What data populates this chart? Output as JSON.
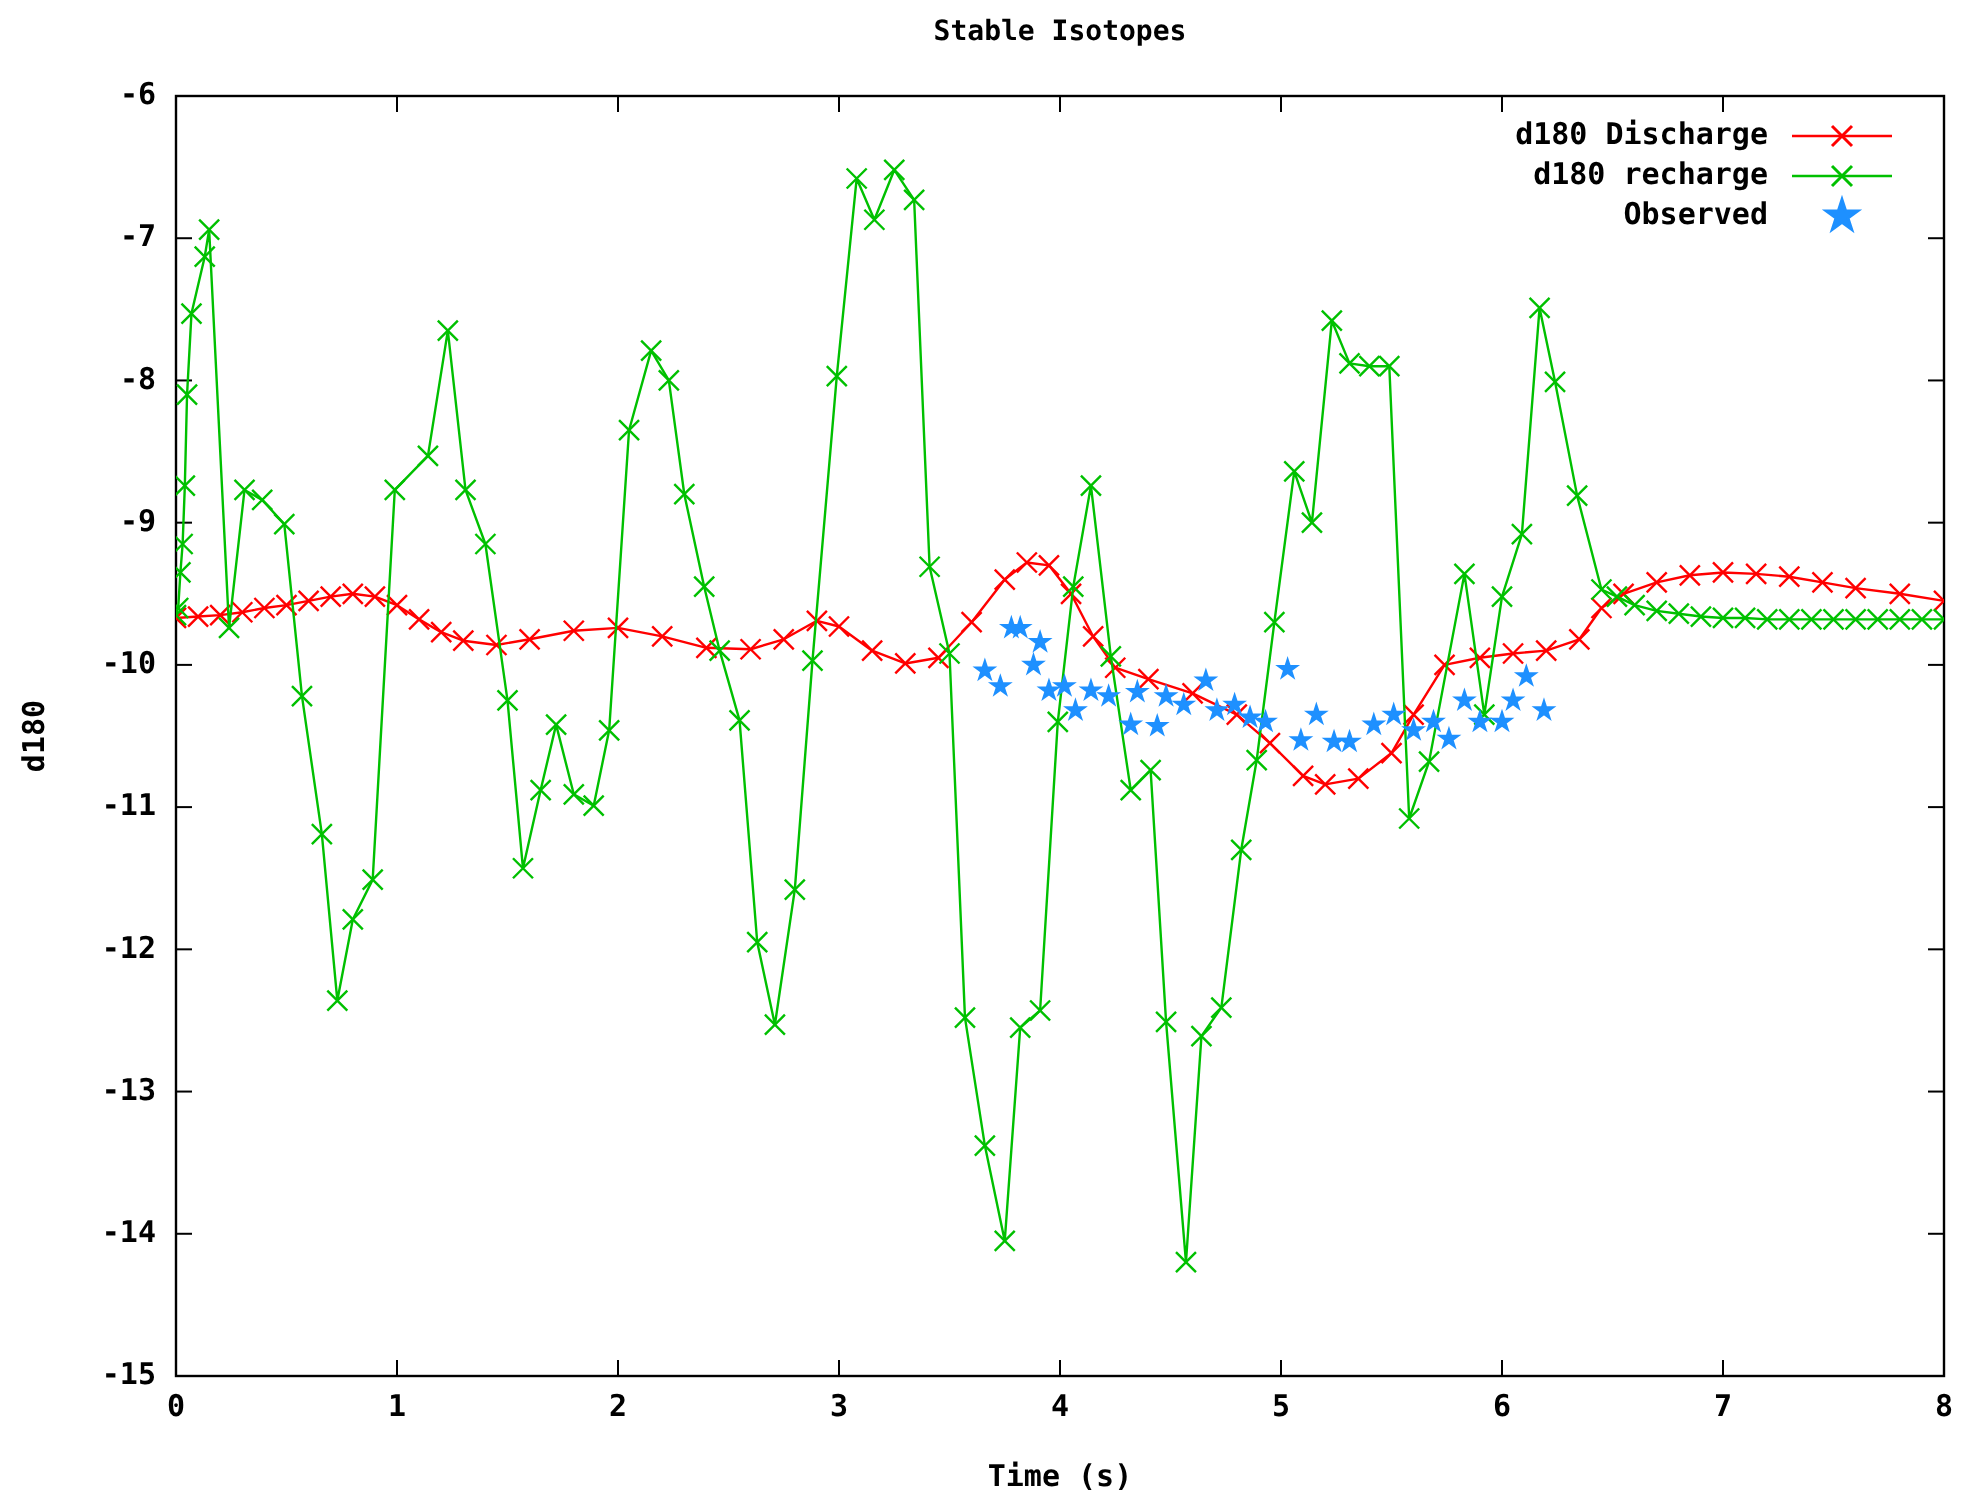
{
  "chart_data": {
    "type": "line",
    "title": "Stable Isotopes",
    "xlabel": "Time (s)",
    "ylabel": "d180",
    "xlim": [
      0,
      8
    ],
    "ylim": [
      -15,
      -6
    ],
    "xticks": [
      0,
      1,
      2,
      3,
      4,
      5,
      6,
      7,
      8
    ],
    "yticks": [
      -15,
      -14,
      -13,
      -12,
      -11,
      -10,
      -9,
      -8,
      -7,
      -6
    ],
    "grid": false,
    "legend": "top right",
    "series": [
      {
        "name": "d180 Discharge",
        "color": "#ff0000",
        "marker": "cross",
        "line_style": "solid",
        "x": [
          0,
          0.1,
          0.2,
          0.3,
          0.4,
          0.5,
          0.6,
          0.7,
          0.8,
          0.9,
          1.0,
          1.1,
          1.2,
          1.3,
          1.45,
          1.6,
          1.8,
          2.0,
          2.2,
          2.4,
          2.6,
          2.75,
          2.9,
          3.0,
          3.15,
          3.3,
          3.45,
          3.6,
          3.75,
          3.85,
          3.95,
          4.05,
          4.15,
          4.25,
          4.4,
          4.6,
          4.8,
          4.95,
          5.1,
          5.2,
          5.35,
          5.5,
          5.6,
          5.74,
          5.9,
          6.05,
          6.2,
          6.35,
          6.45,
          6.55,
          6.7,
          6.85,
          7.0,
          7.15,
          7.3,
          7.45,
          7.6,
          7.8,
          8.0
        ],
        "values": [
          -9.67,
          -9.66,
          -9.65,
          -9.63,
          -9.6,
          -9.58,
          -9.55,
          -9.52,
          -9.5,
          -9.52,
          -9.58,
          -9.68,
          -9.77,
          -9.83,
          -9.86,
          -9.82,
          -9.76,
          -9.74,
          -9.8,
          -9.88,
          -9.89,
          -9.82,
          -9.69,
          -9.73,
          -9.9,
          -9.99,
          -9.95,
          -9.7,
          -9.4,
          -9.28,
          -9.3,
          -9.5,
          -9.8,
          -10.02,
          -10.1,
          -10.2,
          -10.35,
          -10.55,
          -10.78,
          -10.84,
          -10.8,
          -10.62,
          -10.35,
          -10.0,
          -9.95,
          -9.92,
          -9.9,
          -9.82,
          -9.6,
          -9.5,
          -9.42,
          -9.37,
          -9.35,
          -9.36,
          -9.38,
          -9.42,
          -9.46,
          -9.5,
          -9.55
        ]
      },
      {
        "name": "d180 recharge",
        "color": "#00c000",
        "marker": "cross",
        "line_style": "solid",
        "x": [
          0,
          0.01,
          0.02,
          0.03,
          0.04,
          0.05,
          0.07,
          0.13,
          0.15,
          0.24,
          0.31,
          0.39,
          0.49,
          0.57,
          0.66,
          0.73,
          0.8,
          0.89,
          0.99,
          1.14,
          1.23,
          1.31,
          1.4,
          1.5,
          1.57,
          1.65,
          1.72,
          1.8,
          1.89,
          1.96,
          2.05,
          2.15,
          2.23,
          2.3,
          2.39,
          2.46,
          2.55,
          2.63,
          2.71,
          2.8,
          2.88,
          2.99,
          3.08,
          3.16,
          3.25,
          3.34,
          3.41,
          3.5,
          3.57,
          3.66,
          3.75,
          3.82,
          3.91,
          3.99,
          4.06,
          4.14,
          4.23,
          4.32,
          4.41,
          4.48,
          4.57,
          4.64,
          4.73,
          4.82,
          4.89,
          4.97,
          5.06,
          5.14,
          5.23,
          5.31,
          5.4,
          5.49,
          5.58,
          5.67,
          5.83,
          5.92,
          6.0,
          6.09,
          6.17,
          6.24,
          6.34,
          6.45,
          6.52,
          6.6,
          6.7,
          6.8,
          6.9,
          7.0,
          7.1,
          7.2,
          7.3,
          7.4,
          7.5,
          7.6,
          7.7,
          7.8,
          7.9,
          8.0
        ],
        "values": [
          -9.65,
          -9.6,
          -9.35,
          -9.15,
          -8.74,
          -8.1,
          -7.53,
          -7.13,
          -6.94,
          -9.74,
          -8.77,
          -8.84,
          -9.01,
          -10.22,
          -11.19,
          -12.36,
          -11.79,
          -11.51,
          -8.77,
          -8.53,
          -7.65,
          -8.77,
          -9.15,
          -10.25,
          -11.43,
          -10.88,
          -10.42,
          -10.91,
          -10.99,
          -10.46,
          -8.35,
          -7.79,
          -8.0,
          -8.8,
          -9.45,
          -9.9,
          -10.39,
          -11.95,
          -12.53,
          -11.58,
          -9.97,
          -7.97,
          -6.58,
          -6.87,
          -6.52,
          -6.73,
          -9.31,
          -9.92,
          -12.48,
          -13.38,
          -14.05,
          -12.55,
          -12.43,
          -10.4,
          -9.45,
          -8.74,
          -9.94,
          -10.88,
          -10.74,
          -12.51,
          -14.2,
          -12.61,
          -12.41,
          -11.3,
          -10.67,
          -9.7,
          -8.64,
          -9.0,
          -7.58,
          -7.88,
          -7.9,
          -7.9,
          -11.08,
          -10.68,
          -9.36,
          -10.35,
          -9.52,
          -9.08,
          -7.49,
          -8.01,
          -8.81,
          -9.47,
          -9.52,
          -9.58,
          -9.62,
          -9.64,
          -9.66,
          -9.67,
          -9.67,
          -9.68,
          -9.68,
          -9.68,
          -9.68,
          -9.68,
          -9.68,
          -9.68,
          -9.68,
          -9.68
        ]
      },
      {
        "name": "Observed",
        "type": "scatter",
        "color": "#1e90ff",
        "marker": "star",
        "x": [
          3.66,
          3.73,
          3.78,
          3.82,
          3.88,
          3.91,
          3.95,
          4.02,
          4.07,
          4.14,
          4.22,
          4.32,
          4.35,
          4.44,
          4.48,
          4.56,
          4.66,
          4.71,
          4.79,
          4.86,
          4.93,
          5.03,
          5.09,
          5.16,
          5.24,
          5.31,
          5.42,
          5.51,
          5.6,
          5.69,
          5.76,
          5.83,
          5.9,
          6.0,
          6.05,
          6.11,
          6.19
        ],
        "values": [
          -10.04,
          -10.15,
          -9.74,
          -9.74,
          -10.0,
          -9.84,
          -10.18,
          -10.15,
          -10.32,
          -10.18,
          -10.22,
          -10.42,
          -10.19,
          -10.43,
          -10.22,
          -10.28,
          -10.11,
          -10.32,
          -10.28,
          -10.37,
          -10.4,
          -10.03,
          -10.53,
          -10.35,
          -10.54,
          -10.54,
          -10.42,
          -10.35,
          -10.46,
          -10.4,
          -10.52,
          -10.25,
          -10.4,
          -10.4,
          -10.25,
          -10.08,
          -10.32
        ]
      }
    ]
  }
}
